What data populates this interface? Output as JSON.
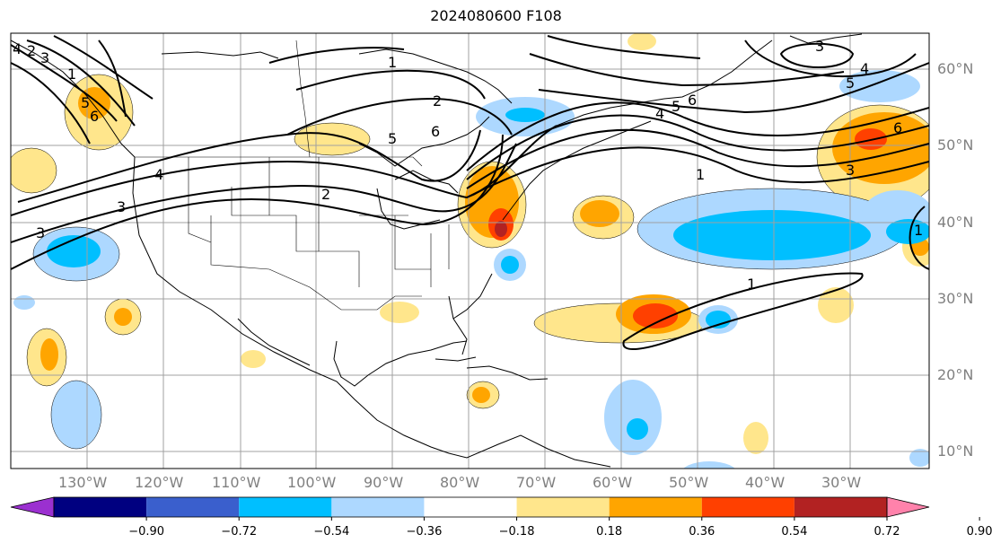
{
  "title": "2024080600 F108",
  "lon_labels": [
    "130°W",
    "120°W",
    "110°W",
    "100°W",
    "90°W",
    "80°W",
    "70°W",
    "60°W",
    "50°W",
    "40°W",
    "30°W"
  ],
  "lat_labels": [
    "60°N",
    "50°N",
    "40°N",
    "30°N",
    "20°N",
    "10°N"
  ],
  "colorbar": {
    "ticks": [
      "−0.90",
      "−0.72",
      "−0.54",
      "−0.36",
      "−0.18",
      "0.18",
      "0.36",
      "0.54",
      "0.72",
      "0.90"
    ],
    "colors": [
      "#9b30d0",
      "#000080",
      "#3a5fcd",
      "#00bfff",
      "#add8ff",
      "#ffffff",
      "#ffe68c",
      "#ffa500",
      "#ff4000",
      "#b22222",
      "#ff82ab"
    ]
  },
  "contour_labels": [
    "1",
    "2",
    "3",
    "4",
    "5",
    "6",
    "1",
    "2",
    "3",
    "4",
    "5",
    "6",
    "3",
    "4",
    "5",
    "6",
    "1",
    "2",
    "3",
    "4",
    "5",
    "6",
    "1",
    "3",
    "1"
  ],
  "colors": {
    "positive_light": "#ffe68c",
    "positive_mid": "#ffa500",
    "positive_strong": "#ff4000",
    "negative_light": "#add8ff",
    "negative_mid": "#00bfff"
  }
}
